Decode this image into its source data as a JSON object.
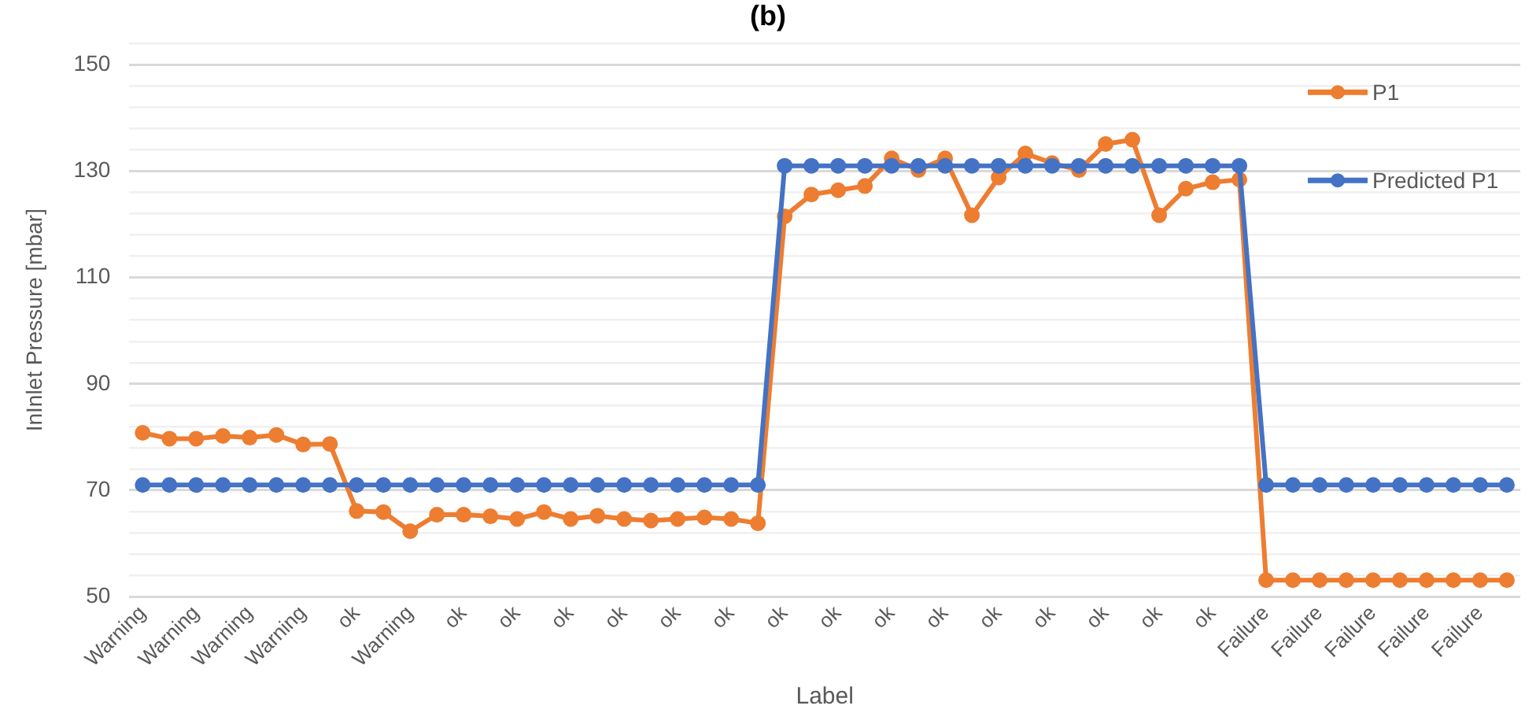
{
  "chart_data": {
    "type": "line",
    "title": "(b)",
    "xlabel": "Label",
    "ylabel": "InInlet Pressure [mbar]",
    "categories": [
      "Warning",
      null,
      "Warning",
      null,
      "Warning",
      null,
      "Warning",
      null,
      "ok",
      null,
      "Warning",
      null,
      "ok",
      null,
      "ok",
      null,
      "ok",
      null,
      "ok",
      null,
      "ok",
      null,
      "ok",
      null,
      "ok",
      null,
      "ok",
      null,
      "ok",
      null,
      "ok",
      null,
      "ok",
      null,
      "ok",
      null,
      "ok",
      null,
      "ok",
      null,
      "ok",
      null,
      "Failure",
      null,
      "Failure",
      null,
      "Failure",
      null,
      "Failure",
      null,
      "Failure",
      null
    ],
    "series": [
      {
        "name": "P1",
        "color": "#ed7d31",
        "values": [
          80.8,
          79.7,
          79.7,
          80.2,
          79.9,
          80.4,
          78.6,
          78.7,
          66.1,
          65.9,
          62.3,
          65.4,
          65.4,
          65.1,
          64.6,
          65.9,
          64.6,
          65.2,
          64.6,
          64.3,
          64.6,
          64.9,
          64.6,
          63.8,
          121.5,
          125.6,
          126.4,
          127.2,
          132.4,
          130.2,
          132.4,
          121.7,
          128.8,
          133.3,
          131.5,
          130.2,
          135.1,
          135.9,
          121.7,
          126.7,
          127.9,
          128.4,
          53.1,
          53.1,
          53.1,
          53.1,
          53.1,
          53.1,
          53.1,
          53.1,
          53.1,
          53.1
        ]
      },
      {
        "name": "Predicted P1",
        "color": "#4472c4",
        "values": [
          71,
          71,
          71,
          71,
          71,
          71,
          71,
          71,
          71,
          71,
          71,
          71,
          71,
          71,
          71,
          71,
          71,
          71,
          71,
          71,
          71,
          71,
          71,
          71,
          131,
          131,
          131,
          131,
          131,
          131,
          131,
          131,
          131,
          131,
          131,
          131,
          131,
          131,
          131,
          131,
          131,
          131,
          71,
          71,
          71,
          71,
          71,
          71,
          71,
          71,
          71,
          71
        ]
      }
    ],
    "ylim": [
      50,
      154
    ],
    "yticks": [
      50,
      {
        "value": 54,
        "label": null
      },
      {
        "value": 58,
        "label": null
      },
      {
        "value": 62,
        "label": null
      },
      {
        "value": 66,
        "label": null
      },
      70,
      {
        "value": 74,
        "label": null
      },
      {
        "value": 78,
        "label": null
      },
      {
        "value": 82,
        "label": null
      },
      {
        "value": 86,
        "label": null
      },
      90,
      {
        "value": 94,
        "label": null
      },
      {
        "value": 98,
        "label": null
      },
      {
        "value": 102,
        "label": null
      },
      {
        "value": 106,
        "label": null
      },
      110,
      {
        "value": 114,
        "label": null
      },
      {
        "value": 118,
        "label": null
      },
      {
        "value": 122,
        "label": null
      },
      {
        "value": 126,
        "label": null
      },
      130,
      {
        "value": 134,
        "label": null
      },
      {
        "value": 138,
        "label": null
      },
      {
        "value": 142,
        "label": null
      },
      {
        "value": 146,
        "label": null
      },
      150,
      {
        "value": 154,
        "label": null
      }
    ],
    "grid": "y",
    "legend": "right",
    "marker": "circle"
  }
}
